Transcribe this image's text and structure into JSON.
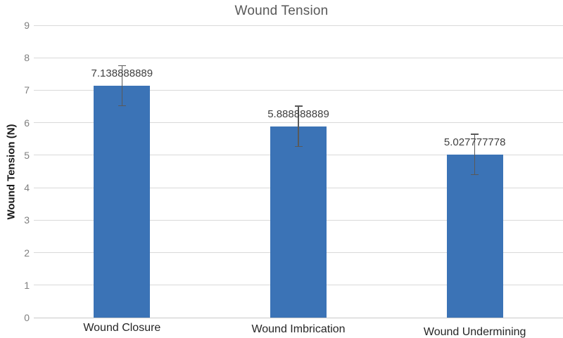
{
  "chart_data": {
    "type": "bar",
    "title": "Wound Tension",
    "categories": [
      "Wound Closure",
      "Wound Imbrication",
      "Wound Undermining"
    ],
    "values": [
      7.138888889,
      5.888888889,
      5.027777778
    ],
    "data_labels": [
      "7.138888889",
      "5.888888889",
      "5.027777778"
    ],
    "error_bars": [
      0.62,
      0.62,
      0.62
    ],
    "xlabel": "",
    "ylabel": "Wound Tension (N)",
    "ylim": [
      0,
      9
    ],
    "ytick_interval": 1,
    "ytick_labels": [
      "0",
      "1",
      "2",
      "3",
      "4",
      "5",
      "6",
      "7",
      "8",
      "9"
    ],
    "grid": true,
    "legend": false,
    "colors": {
      "bar": "#3B73B6",
      "error_bar": "#595959",
      "gridline": "#D9D9D9",
      "baseline": "#C9C9C9",
      "title": "#595959",
      "tick_label": "#7F7F7F"
    }
  }
}
